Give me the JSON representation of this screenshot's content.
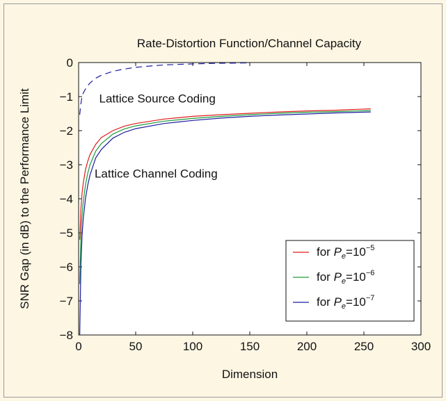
{
  "chart_data": {
    "type": "line",
    "title": "Rate-Distortion Function/Channel Capacity",
    "xlabel": "Dimension",
    "ylabel": "SNR Gap (in dB) to the Performance Limit",
    "xlim": [
      0,
      300
    ],
    "ylim": [
      -8,
      0
    ],
    "xticks": [
      0,
      50,
      100,
      150,
      200,
      250,
      300
    ],
    "yticks": [
      0,
      -1,
      -2,
      -3,
      -4,
      -5,
      -6,
      -7,
      -8
    ],
    "xtick_labels": [
      "0",
      "50",
      "100",
      "150",
      "200",
      "250",
      "300"
    ],
    "ytick_labels": [
      "0",
      "−1",
      "−2",
      "−3",
      "−4",
      "−5",
      "−6",
      "−7",
      "−8"
    ],
    "grid": false,
    "legend_position": "bottom-right",
    "annotations": [
      {
        "text": "Lattice Source Coding",
        "x": 18,
        "y": -1.05
      },
      {
        "text": "Lattice Channel Coding",
        "x": 14,
        "y": -3.25
      }
    ],
    "series": [
      {
        "name": "for Pe=10−5",
        "legend_prefix": "for ",
        "legend_p": "P",
        "legend_sub": "e",
        "legend_eq": "=10",
        "legend_sup": "−5",
        "color": "#e01b1b",
        "style": "solid",
        "x": [
          1,
          2,
          3,
          4,
          6,
          8,
          10,
          15,
          20,
          30,
          40,
          50,
          75,
          100,
          125,
          150,
          175,
          200,
          225,
          256
        ],
        "y": [
          -5.2,
          -4.3,
          -3.85,
          -3.55,
          -3.15,
          -2.9,
          -2.7,
          -2.4,
          -2.2,
          -2.0,
          -1.87,
          -1.79,
          -1.66,
          -1.58,
          -1.53,
          -1.49,
          -1.45,
          -1.42,
          -1.4,
          -1.36
        ]
      },
      {
        "name": "for Pe=10−6",
        "legend_prefix": "for ",
        "legend_p": "P",
        "legend_sub": "e",
        "legend_eq": "=10",
        "legend_sup": "−6",
        "color": "#1a9a3a",
        "style": "solid",
        "x": [
          1,
          2,
          3,
          4,
          6,
          8,
          10,
          15,
          20,
          30,
          40,
          50,
          75,
          100,
          125,
          150,
          175,
          200,
          225,
          256
        ],
        "y": [
          -6.5,
          -5.1,
          -4.5,
          -4.1,
          -3.6,
          -3.25,
          -3.0,
          -2.6,
          -2.38,
          -2.1,
          -1.95,
          -1.86,
          -1.72,
          -1.64,
          -1.58,
          -1.53,
          -1.49,
          -1.46,
          -1.44,
          -1.41
        ]
      },
      {
        "name": "for Pe=10−7",
        "legend_prefix": "for ",
        "legend_p": "P",
        "legend_sub": "e",
        "legend_eq": "=10",
        "legend_sup": "−7",
        "color": "#1c1c9c",
        "style": "solid",
        "x": [
          1,
          2,
          3,
          4,
          6,
          8,
          10,
          15,
          20,
          30,
          40,
          50,
          75,
          100,
          125,
          150,
          175,
          200,
          225,
          256
        ],
        "y": [
          -8.0,
          -5.9,
          -5.1,
          -4.6,
          -4.0,
          -3.6,
          -3.3,
          -2.8,
          -2.55,
          -2.22,
          -2.05,
          -1.94,
          -1.79,
          -1.7,
          -1.63,
          -1.58,
          -1.54,
          -1.51,
          -1.48,
          -1.45
        ]
      },
      {
        "name": "",
        "color": "#1c1c9c",
        "style": "dashed",
        "x": [
          1,
          2,
          3,
          4,
          6,
          8,
          10,
          15,
          20,
          30,
          40,
          50,
          60,
          75,
          90,
          100,
          110,
          125,
          150
        ],
        "y": [
          -1.53,
          -1.2,
          -1.0,
          -0.9,
          -0.78,
          -0.68,
          -0.6,
          -0.46,
          -0.37,
          -0.26,
          -0.19,
          -0.14,
          -0.11,
          -0.07,
          -0.05,
          -0.04,
          -0.03,
          -0.02,
          -0.01
        ]
      }
    ]
  }
}
